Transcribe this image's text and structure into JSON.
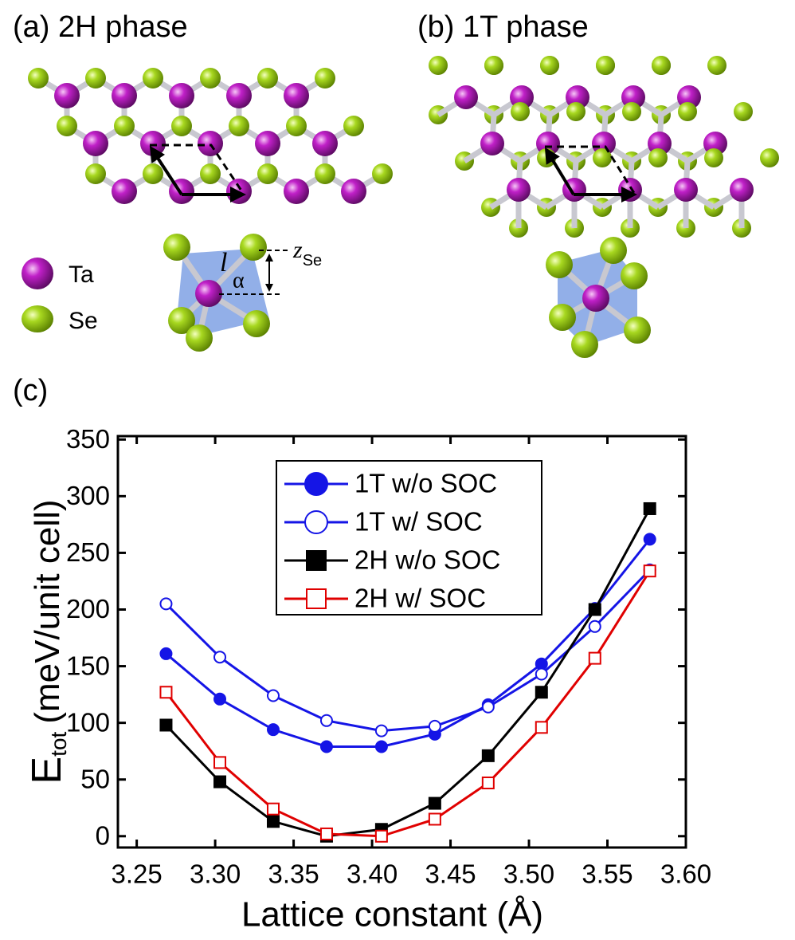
{
  "panels": {
    "a": "(a) 2H phase",
    "b": "(b) 1T phase",
    "c": "(c)"
  },
  "atoms": {
    "ta": "Ta",
    "se": "Se"
  },
  "geometry_labels": {
    "bond": "l",
    "angle": "α",
    "z": "z",
    "z_sub": "Se"
  },
  "chart_data": {
    "type": "line",
    "x": [
      3.2687,
      3.303,
      3.337,
      3.371,
      3.406,
      3.44,
      3.474,
      3.508,
      3.542,
      3.577
    ],
    "series": [
      {
        "name": "1T w/o SOC",
        "color": "#1515e6",
        "marker": "circle",
        "filled": true,
        "values": [
          161,
          121,
          94,
          79,
          79,
          90,
          116,
          152,
          201,
          262
        ]
      },
      {
        "name": "1T w/ SOC",
        "color": "#1515e6",
        "marker": "circle",
        "filled": false,
        "values": [
          205,
          158,
          124,
          102,
          93,
          97,
          114,
          143,
          185,
          235
        ]
      },
      {
        "name": "2H w/o SOC",
        "color": "#000000",
        "marker": "square",
        "filled": true,
        "values": [
          98,
          48,
          13,
          0,
          6,
          29,
          71,
          127,
          200,
          289
        ]
      },
      {
        "name": "2H w/ SOC",
        "color": "#e00000",
        "marker": "square",
        "filled": false,
        "values": [
          127,
          65,
          24,
          2,
          0,
          15,
          47,
          96,
          157,
          234
        ]
      }
    ],
    "xlim": [
      3.238,
      3.6
    ],
    "ylim": [
      -10,
      353
    ],
    "xticks": [
      3.25,
      {
        "value": 3.3,
        "label": "3.30"
      },
      3.35,
      {
        "value": 3.4,
        "label": "3.40"
      },
      3.45,
      {
        "value": 3.5,
        "label": "3.50"
      },
      3.55,
      {
        "value": 3.6,
        "label": "3.60"
      }
    ],
    "yticks": [
      0,
      50,
      100,
      150,
      200,
      250,
      300,
      350
    ],
    "xlabel": "Lattice constant (Å)",
    "ylabel": {
      "main": "E",
      "sub": "tot",
      "rest": "(meV/unit cell)"
    },
    "legend": "upper center"
  }
}
